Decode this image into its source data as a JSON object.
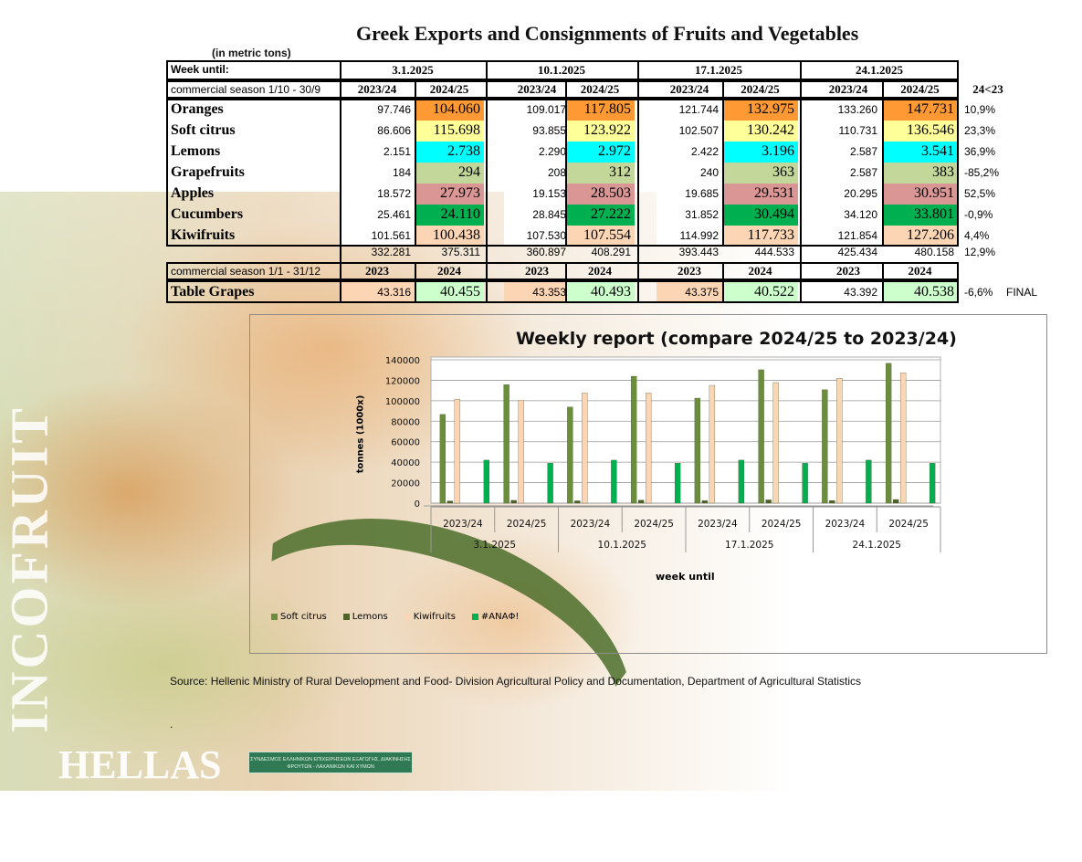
{
  "title": "Greek Exports and Consignments of Fruits and Vegetables",
  "unit_note": "(in metric tons)",
  "table": {
    "week_label": "Week until:",
    "weeks": [
      "3.1.2025",
      "10.1.2025",
      "17.1.2025",
      "24.1.2025"
    ],
    "season_label": "commercial season 1/10 - 30/9",
    "season_cols": [
      "2023/24",
      "2024/25"
    ],
    "compare_header": "24<23",
    "rows": [
      {
        "name": "Oranges",
        "color": "#ff9933",
        "prev": [
          "97.746",
          "109.017",
          "121.744",
          "133.260"
        ],
        "curr": [
          "104.060",
          "117.805",
          "132.975",
          "147.731"
        ],
        "pct": "10,9%"
      },
      {
        "name": "Soft citrus",
        "color": "#ffff99",
        "prev": [
          "86.606",
          "93.855",
          "102.507",
          "110.731"
        ],
        "curr": [
          "115.698",
          "123.922",
          "130.242",
          "136.546"
        ],
        "pct": "23,3%"
      },
      {
        "name": "Lemons",
        "color": "#00ffff",
        "prev": [
          "2.151",
          "2.290",
          "2.422",
          "2.587"
        ],
        "curr": [
          "2.738",
          "2.972",
          "3.196",
          "3.541"
        ],
        "pct": "36,9%"
      },
      {
        "name": "Grapefruits",
        "color": "#c4d79b",
        "prev": [
          "184",
          "208",
          "240",
          "2.587"
        ],
        "curr": [
          "294",
          "312",
          "363",
          "383"
        ],
        "pct": "-85,2%"
      },
      {
        "name": "Apples",
        "color": "#da9694",
        "prev": [
          "18.572",
          "19.153",
          "19.685",
          "20.295"
        ],
        "curr": [
          "27.973",
          "28.503",
          "29.531",
          "30.951"
        ],
        "pct": "52,5%"
      },
      {
        "name": "Cucumbers",
        "color": "#00b050",
        "prev": [
          "25.461",
          "28.845",
          "31.852",
          "34.120"
        ],
        "curr": [
          "24.110",
          "27.222",
          "30.494",
          "33.801"
        ],
        "pct": "-0,9%"
      },
      {
        "name": "Kiwifruits",
        "color": "#fcd5b4",
        "prev": [
          "101.561",
          "107.530",
          "114.992",
          "121.854"
        ],
        "curr": [
          "100.438",
          "107.554",
          "117.733",
          "127.206"
        ],
        "pct": "4,4%"
      }
    ],
    "totals": {
      "prev": [
        "332.281",
        "360.897",
        "393.443",
        "425.434"
      ],
      "curr": [
        "375.311",
        "408.291",
        "444.533",
        "480.158"
      ],
      "pct": "12,9%"
    },
    "season2_label": "commercial season 1/1 - 31/12",
    "season2_cols": [
      "2023",
      "2024"
    ],
    "grapes": {
      "name": "Table Grapes",
      "color": "#ccffcc",
      "prev": [
        "43.316",
        "43.353",
        "43.375",
        "43.392"
      ],
      "curr": [
        "40.455",
        "40.493",
        "40.522",
        "40.538"
      ],
      "pct": "-6,6%",
      "status": "FINAL"
    }
  },
  "chart_data": {
    "type": "bar",
    "title": "Weekly report (compare 2024/25 to 2023/24)",
    "ylabel": "tonnes (1000x)",
    "xlabel": "week until",
    "ylim": [
      0,
      140000
    ],
    "yticks": [
      0,
      20000,
      40000,
      60000,
      80000,
      100000,
      120000,
      140000
    ],
    "categories": [
      "2023/24",
      "2024/25",
      "2023/24",
      "2024/25",
      "2023/24",
      "2024/25",
      "2023/24",
      "2024/25"
    ],
    "groups": [
      "3.1.2025",
      "10.1.2025",
      "17.1.2025",
      "24.1.2025"
    ],
    "series": [
      {
        "name": "Soft citrus",
        "color": "#6b8e3c",
        "values": [
          86606,
          115698,
          93855,
          123922,
          102507,
          130242,
          110731,
          136546
        ]
      },
      {
        "name": "Lemons",
        "color": "#4f6228",
        "values": [
          2151,
          2738,
          2290,
          2972,
          2422,
          3196,
          2587,
          3541
        ]
      },
      {
        "name": "Kiwifruits",
        "color": "#fcd5b4",
        "values": [
          101561,
          100438,
          107530,
          107554,
          114992,
          117733,
          121854,
          127206
        ]
      },
      {
        "name": "#ΑΝΑΦ!",
        "color": "#00b050",
        "values": [
          42000,
          39000,
          42000,
          39000,
          42000,
          39000,
          42000,
          39000
        ]
      }
    ],
    "grid": true,
    "legend": "bottom-left"
  },
  "source": "Source: Hellenic Ministry of Rural Development and Food- Division Agricultural Policy and Documentation, Department of Agricultural Statistics",
  "footer_dot": ".",
  "brand": {
    "vertical_text": "INCOFRUIT",
    "hellas": "HELLAS",
    "association": "ΣΥΝΔΕΣΜΟΣ ΕΛΛΗΝΙΚΩΝ ΕΠΙΧΕΙΡΗΣΕΩΝ ΕΞΑΓΩΓΗΣ, ΔΙΑΚΙΝΗΣΗΣ ΦΡΟΥΤΩΝ - ΛΑΧΑΝΙΚΩΝ ΚΑΙ ΧΥΜΩΝ"
  }
}
